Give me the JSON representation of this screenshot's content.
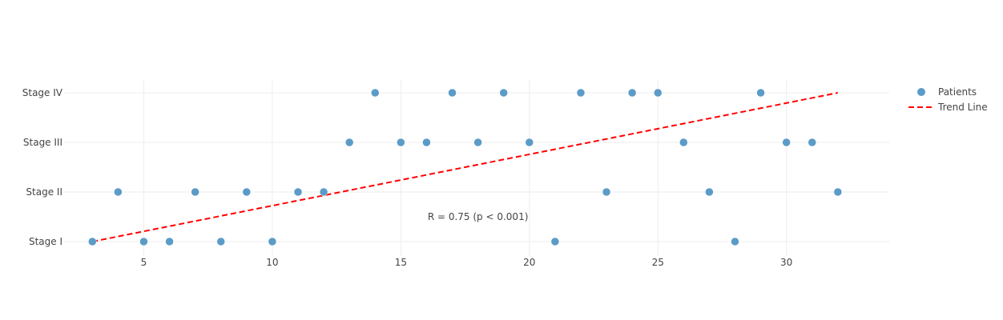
{
  "chart_data": {
    "type": "scatter",
    "title": "",
    "xlabel": "",
    "ylabel": "",
    "xlim": [
      1.9,
      34
    ],
    "y_categories": [
      "Stage I",
      "Stage II",
      "Stage III",
      "Stage IV"
    ],
    "x_ticks": [
      5,
      10,
      15,
      20,
      25,
      30
    ],
    "grid": true,
    "legend_position": "top-right",
    "series": [
      {
        "name": "Patients",
        "kind": "markers",
        "color": "#5b9bc8",
        "points": [
          {
            "x": 3,
            "y": "Stage I"
          },
          {
            "x": 4,
            "y": "Stage II"
          },
          {
            "x": 5,
            "y": "Stage I"
          },
          {
            "x": 6,
            "y": "Stage I"
          },
          {
            "x": 7,
            "y": "Stage II"
          },
          {
            "x": 8,
            "y": "Stage I"
          },
          {
            "x": 9,
            "y": "Stage II"
          },
          {
            "x": 10,
            "y": "Stage I"
          },
          {
            "x": 11,
            "y": "Stage II"
          },
          {
            "x": 12,
            "y": "Stage II"
          },
          {
            "x": 13,
            "y": "Stage III"
          },
          {
            "x": 14,
            "y": "Stage IV"
          },
          {
            "x": 15,
            "y": "Stage III"
          },
          {
            "x": 16,
            "y": "Stage III"
          },
          {
            "x": 17,
            "y": "Stage IV"
          },
          {
            "x": 18,
            "y": "Stage III"
          },
          {
            "x": 19,
            "y": "Stage IV"
          },
          {
            "x": 20,
            "y": "Stage III"
          },
          {
            "x": 21,
            "y": "Stage I"
          },
          {
            "x": 22,
            "y": "Stage IV"
          },
          {
            "x": 23,
            "y": "Stage II"
          },
          {
            "x": 24,
            "y": "Stage IV"
          },
          {
            "x": 25,
            "y": "Stage IV"
          },
          {
            "x": 26,
            "y": "Stage III"
          },
          {
            "x": 27,
            "y": "Stage II"
          },
          {
            "x": 28,
            "y": "Stage I"
          },
          {
            "x": 29,
            "y": "Stage IV"
          },
          {
            "x": 30,
            "y": "Stage III"
          },
          {
            "x": 31,
            "y": "Stage III"
          },
          {
            "x": 32,
            "y": "Stage II"
          }
        ]
      },
      {
        "name": "Trend Line",
        "kind": "dashed-line",
        "color": "#ff0000",
        "points": [
          {
            "x": 3,
            "y": "Stage I"
          },
          {
            "x": 32,
            "y": "Stage IV"
          }
        ]
      }
    ],
    "annotations": [
      {
        "text": "R = 0.75 (p < 0.001)",
        "x": 18,
        "y": "Stage I",
        "y_offset": 0.5
      }
    ]
  }
}
